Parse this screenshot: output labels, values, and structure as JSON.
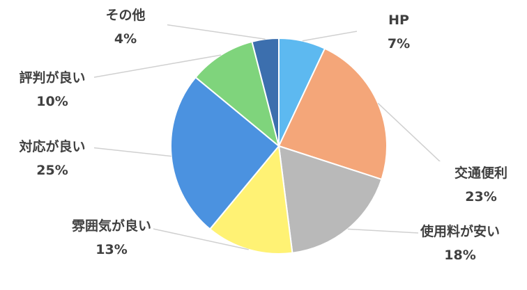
{
  "chart_data": {
    "type": "pie",
    "categories": [
      "HP",
      "交通便利",
      "使用料が安い",
      "雰囲気が良い",
      "対応が良い",
      "評判が良い",
      "その他"
    ],
    "values": [
      7,
      23,
      18,
      13,
      25,
      10,
      4
    ],
    "value_labels": [
      "7%",
      "23%",
      "18%",
      "13%",
      "25%",
      "10%",
      "4%"
    ],
    "colors": [
      "#5db9f0",
      "#f4a679",
      "#b9b9b9",
      "#fff274",
      "#4b92e0",
      "#7fd47c",
      "#3c6fae"
    ]
  }
}
